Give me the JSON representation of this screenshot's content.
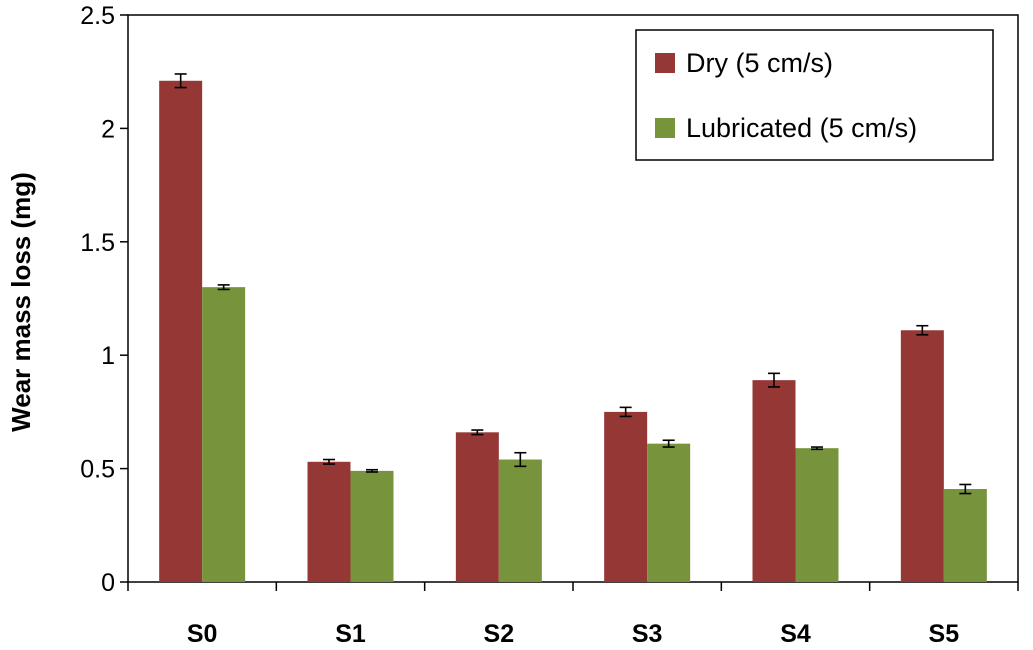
{
  "chart_data": {
    "type": "bar",
    "title": "",
    "xlabel": "",
    "ylabel": "Wear mass loss (mg)",
    "ylim": [
      0,
      2.5
    ],
    "yticks": [
      "0",
      "0.5",
      "1",
      "1.5",
      "2",
      "2.5"
    ],
    "ytick_values": [
      0,
      0.5,
      1,
      1.5,
      2,
      2.5
    ],
    "categories": [
      "S0",
      "S1",
      "S2",
      "S3",
      "S4",
      "S5"
    ],
    "series": [
      {
        "name": "Dry (5 cm/s)",
        "color": "#953735",
        "values": [
          2.21,
          0.53,
          0.66,
          0.75,
          0.89,
          1.11
        ],
        "errors": [
          0.03,
          0.01,
          0.01,
          0.02,
          0.03,
          0.02
        ]
      },
      {
        "name": "Lubricated (5 cm/s)",
        "color": "#77933C",
        "values": [
          1.3,
          0.49,
          0.54,
          0.61,
          0.59,
          0.41
        ],
        "errors": [
          0.01,
          0.005,
          0.03,
          0.015,
          0.005,
          0.02
        ]
      }
    ],
    "grid": false,
    "legend_position": "top-right"
  }
}
